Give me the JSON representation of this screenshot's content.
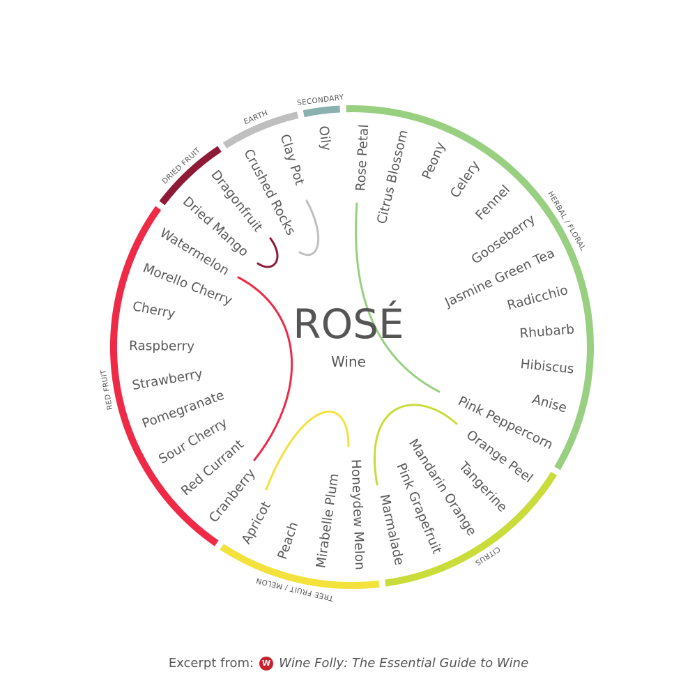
{
  "title": "ROSÉ",
  "subtitle": "Wine",
  "footer": {
    "prefix": "Excerpt from:",
    "logo_icon": "wine-folly-logo-icon",
    "book": "Wine Folly: The Essential Guide to Wine"
  },
  "groups": [
    {
      "name": "HERBAL / FLORAL",
      "color": "#98cf80",
      "labels": [
        "Rose Petal",
        "Citrus Blossom",
        "Peony",
        "Celery",
        "Fennel",
        "Gooseberry",
        "Jasmine Green Tea",
        "Radicchio",
        "Rhubarb",
        "Hibiscus",
        "Anise",
        "Pink Peppercorn"
      ]
    },
    {
      "name": "CITRUS",
      "color": "#c9dc3a",
      "labels": [
        "Orange Peel",
        "Tangerine",
        "Mandarin Orange",
        "Pink Grapefruit",
        "Marmalade"
      ]
    },
    {
      "name": "TREE FRUIT / MELON",
      "color": "#f3e13c",
      "labels": [
        "Honeydew Melon",
        "Mirabelle Plum",
        "Peach",
        "Apricot"
      ]
    },
    {
      "name": "RED FRUIT",
      "color": "#ee2a47",
      "labels": [
        "Cranberry",
        "Red Currant",
        "Sour Cherry",
        "Pomegranate",
        "Strawberry",
        "Raspberry",
        "Cherry",
        "Morello Cherry",
        "Watermelon"
      ]
    },
    {
      "name": "DRIED FRUIT",
      "color": "#8e1a36",
      "labels": [
        "Dried Mango",
        "Dragonfruit"
      ]
    },
    {
      "name": "EARTH",
      "color": "#bfbfbf",
      "labels": [
        "Crushed Rocks",
        "Clay Pot"
      ]
    },
    {
      "name": "SECONDARY",
      "color": "#8ab0b0",
      "labels": [
        "Oily"
      ]
    }
  ]
}
